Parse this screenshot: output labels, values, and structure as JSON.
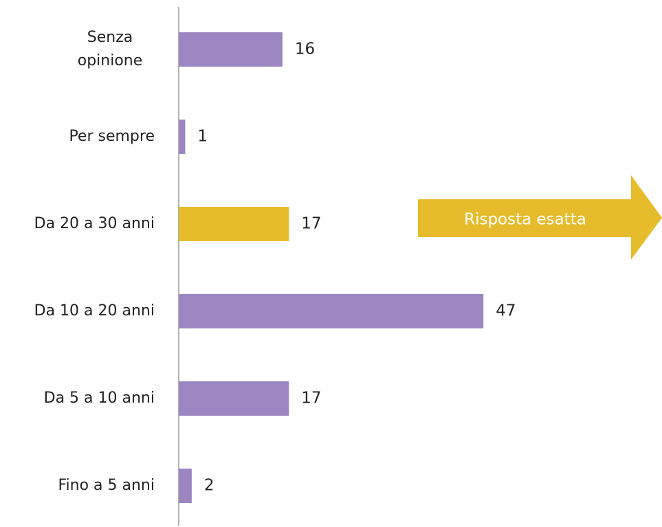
{
  "chart_data": {
    "type": "bar",
    "orientation": "horizontal",
    "categories": [
      "Senza opinione",
      "Per sempre",
      "Da 20 a 30 anni",
      "Da 10 a 20 anni",
      "Da 5 a 10 anni",
      "Fino a 5 anni"
    ],
    "values": [
      16,
      1,
      17,
      47,
      17,
      2
    ],
    "colors": [
      "#9b86c2",
      "#9b86c2",
      "#e6bc2c",
      "#9b86c2",
      "#9b86c2",
      "#9b86c2"
    ],
    "annotation": {
      "text": "Risposta esatta",
      "color": "#e6bc2c"
    }
  }
}
